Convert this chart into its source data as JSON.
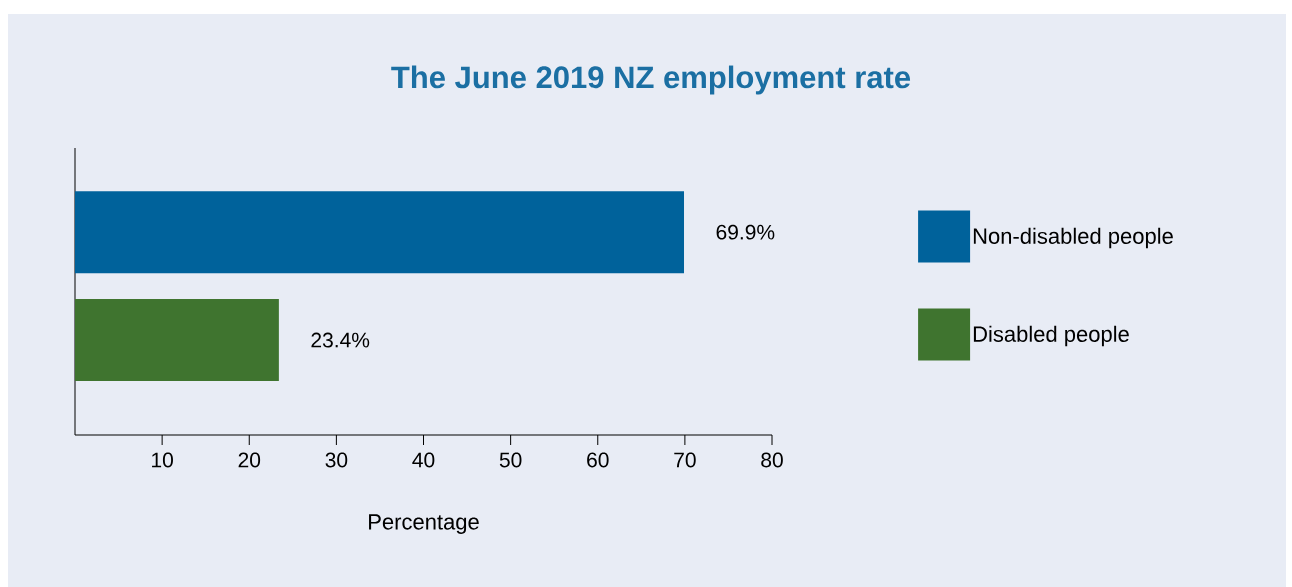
{
  "chart_data": {
    "type": "bar",
    "orientation": "horizontal",
    "title": "The June 2019 NZ employment rate",
    "xlabel": "Percentage",
    "categories": [
      null,
      null
    ],
    "series": [
      {
        "name": "Non-disabled people",
        "color": "#00629b",
        "values": [
          69.9,
          null
        ],
        "value_labels": [
          "69.9%",
          null
        ]
      },
      {
        "name": "Disabled people",
        "color": "#3f742f",
        "values": [
          null,
          23.4
        ],
        "value_labels": [
          null,
          "23.4%"
        ]
      }
    ],
    "xlim": [
      0,
      80
    ],
    "xticks": [
      10,
      20,
      30,
      40,
      50,
      60,
      70,
      80
    ],
    "grid": false,
    "legend": "right"
  }
}
